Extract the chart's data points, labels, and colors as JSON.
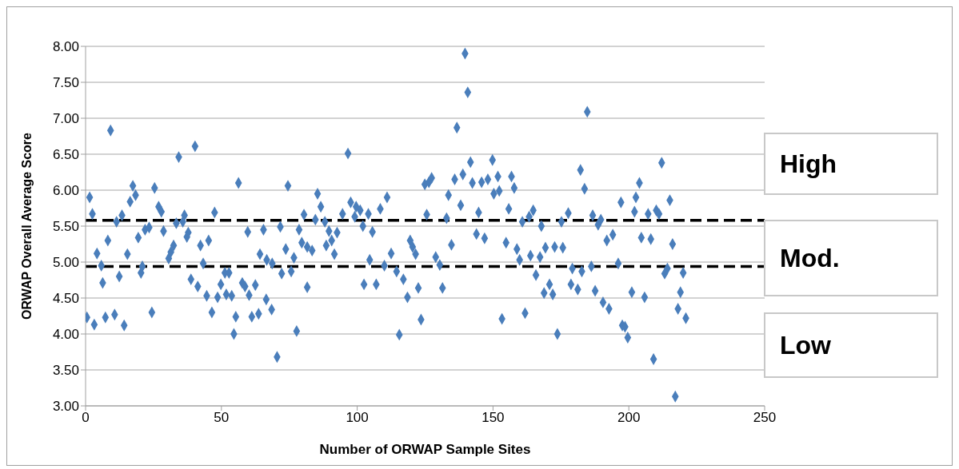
{
  "chart_data": {
    "type": "scatter",
    "xlabel": "Number of ORWAP Sample Sites",
    "ylabel": "ORWAP Overall Average Score",
    "color": "#4a7ebb",
    "marker": "diamond",
    "grid": "y",
    "xlim": [
      0,
      250
    ],
    "xticks": [
      0,
      50,
      100,
      150,
      200,
      250
    ],
    "ylim": [
      3,
      8
    ],
    "yticks": [
      {
        "value": 3,
        "label": "3.00"
      },
      {
        "value": 3.5,
        "label": "3.50"
      },
      {
        "value": 4,
        "label": "4.00"
      },
      {
        "value": 4.5,
        "label": "4.50"
      },
      {
        "value": 5,
        "label": "5.00"
      },
      {
        "value": 5.5,
        "label": "5.50"
      },
      {
        "value": 6,
        "label": "6.00"
      },
      {
        "value": 6.5,
        "label": "6.50"
      },
      {
        "value": 7,
        "label": "7.00"
      },
      {
        "value": 7.5,
        "label": "7.50"
      },
      {
        "value": 8,
        "label": "8.00"
      }
    ],
    "ref_lines": [
      {
        "axis": "y",
        "value": 5.58,
        "color": "#000000",
        "line_style": "dashed"
      },
      {
        "axis": "y",
        "value": 4.94,
        "color": "#000000",
        "line_style": "dashed"
      }
    ],
    "annotations": [
      "High",
      "Mod.",
      "Low"
    ],
    "x": [
      1.5,
      2.5,
      9.2,
      8.2,
      4.2,
      5.8,
      6.3,
      0.5,
      3.2,
      7.3,
      10.7,
      12.4,
      14.2,
      11.4,
      13.4,
      15.4,
      16.4,
      17.4,
      18.4,
      19.4,
      20.9,
      20.4,
      21.9,
      23.4,
      24.4,
      25.4,
      26.9,
      28.7,
      27.9,
      32.4,
      31.4,
      30.6,
      34.3,
      33.4,
      36.4,
      35.8,
      37.8,
      37.3,
      40.3,
      38.8,
      41.3,
      42.3,
      43.3,
      45.3,
      44.6,
      46.5,
      47.5,
      48.6,
      49.8,
      51.3,
      52.8,
      51.8,
      53.8,
      55.3,
      54.6,
      56.3,
      59.7,
      57.7,
      58.7,
      60.2,
      62.5,
      61.2,
      63.7,
      65.5,
      64.2,
      66.7,
      68.7,
      66.5,
      68.5,
      70.5,
      71.7,
      72.2,
      73.7,
      74.5,
      75.7,
      76.7,
      77.7,
      78.6,
      80.4,
      79.6,
      81.6,
      83.4,
      81.6,
      85.4,
      84.6,
      86.6,
      88.1,
      88.6,
      90.6,
      91.6,
      89.6,
      92.6,
      94.6,
      96.6,
      97.6,
      99.6,
      99.1,
      101.1,
      102.1,
      104.1,
      105.6,
      104.6,
      102.5,
      107,
      108.5,
      111,
      110,
      112.5,
      114.5,
      117,
      118.5,
      115.5,
      119.5,
      121.5,
      120.4,
      122.5,
      123.5,
      124.9,
      127.4,
      126.4,
      125.6,
      128.9,
      130.4,
      131.4,
      132.9,
      133.6,
      134.7,
      135.9,
      138.9,
      136.7,
      138.1,
      139.7,
      140.7,
      141.7,
      142.4,
      143.9,
      144.7,
      146.9,
      145.8,
      148.1,
      149.8,
      150.3,
      152.3,
      151.8,
      153.3,
      154.8,
      155.8,
      156.8,
      157.8,
      158.8,
      159.8,
      161.8,
      160.8,
      163.3,
      164.8,
      163.8,
      165.8,
      167.8,
      167.3,
      169.3,
      168.8,
      184.7,
      172.7,
      175.7,
      170.8,
      172,
      173.7,
      175.2,
      177.7,
      179.2,
      178.7,
      181.2,
      182.2,
      183.7,
      182.7,
      186.2,
      186.7,
      188.7,
      189.7,
      187.6,
      190.5,
      192.7,
      191.9,
      194.1,
      196.1,
      197.1,
      197.6,
      198.6,
      199.6,
      201.1,
      202.1,
      202.6,
      203.9,
      204.6,
      205.8,
      207.1,
      208.1,
      209.1,
      210.1,
      211.1,
      212.1,
      213.2,
      214.2,
      215.1,
      216.1,
      217.1,
      218.1,
      219,
      220,
      221
    ],
    "values": [
      5.9,
      5.67,
      6.83,
      5.3,
      5.12,
      4.95,
      4.71,
      4.23,
      4.13,
      4.23,
      4.27,
      4.8,
      4.12,
      5.56,
      5.65,
      5.11,
      5.84,
      6.06,
      5.93,
      5.34,
      4.94,
      4.85,
      5.45,
      5.48,
      4.3,
      6.03,
      5.77,
      5.43,
      5.7,
      5.23,
      5.14,
      5.05,
      6.46,
      5.54,
      5.65,
      5.56,
      5.41,
      5.35,
      6.61,
      4.76,
      4.66,
      5.23,
      4.98,
      5.3,
      4.53,
      4.3,
      5.69,
      4.51,
      4.69,
      4.85,
      4.85,
      4.55,
      4.53,
      4.24,
      4.0,
      6.1,
      5.42,
      4.71,
      4.66,
      4.54,
      4.68,
      4.24,
      4.28,
      5.45,
      5.11,
      5.03,
      4.98,
      4.48,
      4.34,
      3.68,
      5.49,
      4.84,
      5.18,
      6.06,
      4.87,
      5.06,
      4.04,
      5.45,
      5.66,
      5.27,
      5.21,
      5.16,
      4.65,
      5.95,
      5.59,
      5.77,
      5.56,
      5.23,
      5.3,
      5.11,
      5.43,
      5.41,
      5.67,
      6.51,
      5.83,
      5.77,
      5.63,
      5.72,
      5.5,
      5.67,
      5.42,
      5.03,
      4.69,
      4.69,
      5.74,
      5.9,
      4.95,
      5.12,
      4.87,
      4.76,
      4.51,
      3.99,
      5.3,
      5.11,
      5.21,
      4.64,
      4.2,
      6.08,
      6.17,
      6.11,
      5.66,
      5.07,
      4.96,
      4.64,
      5.61,
      5.93,
      5.24,
      6.15,
      6.22,
      6.87,
      5.79,
      7.9,
      7.36,
      6.39,
      6.1,
      5.39,
      5.69,
      5.33,
      6.11,
      6.15,
      6.42,
      5.95,
      5.99,
      6.19,
      4.21,
      5.27,
      5.74,
      6.19,
      6.03,
      5.18,
      5.03,
      4.29,
      5.56,
      5.63,
      5.72,
      5.09,
      4.82,
      5.5,
      5.07,
      5.2,
      4.57,
      7.09,
      5.21,
      5.2,
      4.69,
      4.55,
      4.0,
      5.56,
      5.68,
      4.91,
      4.69,
      4.62,
      6.28,
      6.02,
      4.87,
      4.94,
      5.65,
      5.52,
      5.59,
      4.6,
      4.44,
      4.35,
      5.3,
      5.38,
      4.98,
      5.83,
      4.12,
      4.1,
      3.95,
      4.58,
      5.7,
      5.9,
      6.1,
      5.34,
      4.51,
      5.67,
      5.32,
      3.65,
      5.72,
      5.67,
      6.38,
      4.84,
      4.91,
      5.86,
      5.25,
      3.13,
      4.35,
      4.58,
      4.85,
      4.22
    ]
  }
}
